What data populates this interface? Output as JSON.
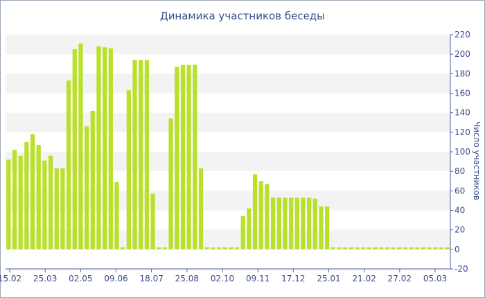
{
  "chart_data": {
    "type": "bar",
    "title": "Динамика участников беседы",
    "ylabel": "Число участников",
    "xlabel": "",
    "y_axis_side": "right",
    "ylim": [
      -20,
      220
    ],
    "y_ticks": [
      -20,
      0,
      20,
      40,
      60,
      80,
      100,
      120,
      140,
      160,
      180,
      200,
      220
    ],
    "x_tick_labels": [
      "15.02",
      "25.03",
      "02.05",
      "09.06",
      "18.07",
      "25.08",
      "02.10",
      "09.11",
      "17.12",
      "25.01",
      "21.02",
      "27.02",
      "05.03"
    ],
    "grid": "horizontal bands",
    "bar_color": "#b9e02a",
    "values": [
      92,
      102,
      96,
      110,
      118,
      107,
      91,
      96,
      83,
      83,
      173,
      205,
      211,
      126,
      142,
      208,
      207,
      206,
      69,
      2,
      163,
      194,
      194,
      194,
      57,
      2,
      2,
      134,
      187,
      189,
      189,
      189,
      83,
      2,
      2,
      2,
      2,
      2,
      2,
      34,
      42,
      77,
      70,
      67,
      53,
      53,
      53,
      53,
      53,
      53,
      53,
      52,
      44,
      44,
      2,
      2,
      2,
      2,
      2,
      2,
      2,
      2,
      2,
      2,
      2,
      2,
      2,
      2,
      2,
      2,
      2,
      2,
      2,
      2
    ]
  },
  "colors": {
    "text": "#3a4a8a",
    "axis": "#4a5aa0",
    "band": "#f3f3f3",
    "frame": "#9aa3b5"
  }
}
